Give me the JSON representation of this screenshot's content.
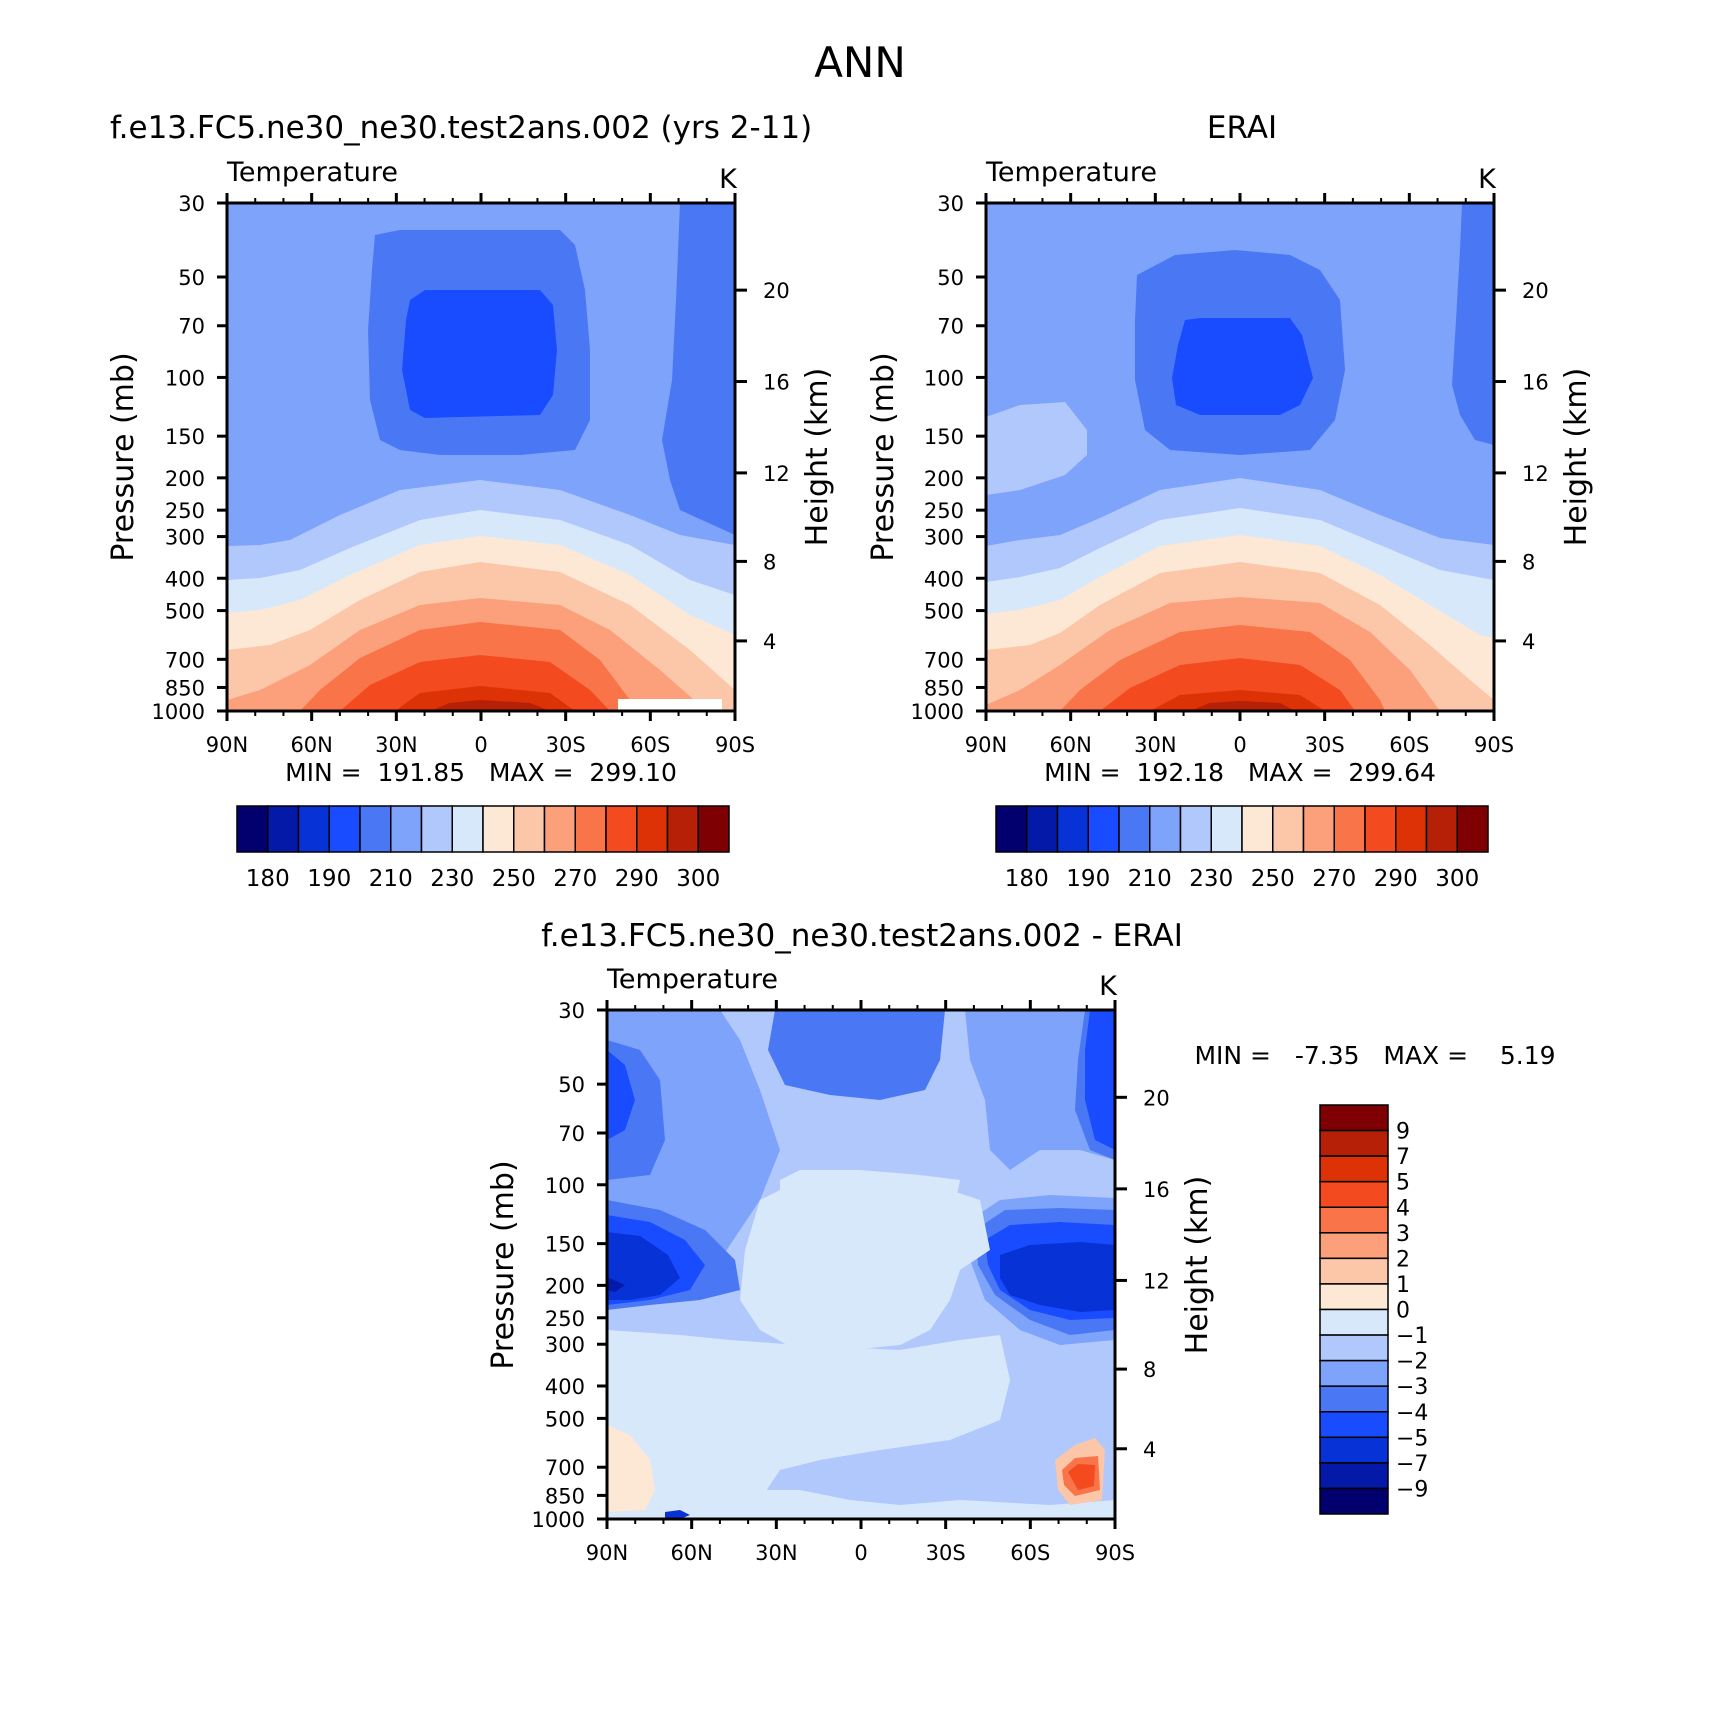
{
  "page": {
    "title": "ANN"
  },
  "colors": {
    "temp_palette": [
      "#02006e",
      "#0519a9",
      "#0632d6",
      "#1a4cff",
      "#4a78f5",
      "#7ea3fb",
      "#b1c8fc",
      "#d8e8fb",
      "#fde8d6",
      "#fcc6a8",
      "#fba07a",
      "#f97448",
      "#f44a1f",
      "#dd3106",
      "#b52006",
      "#7e0002"
    ],
    "diff_palette": [
      "#02006e",
      "#0519a9",
      "#0632d6",
      "#1a4cff",
      "#4a78f5",
      "#7ea3fb",
      "#b1c8fc",
      "#d8e8fb",
      "#fde8d6",
      "#fcc6a8",
      "#fba07a",
      "#f97448",
      "#f44a1f",
      "#dd3106",
      "#b52006",
      "#7e0002"
    ]
  },
  "chart_data": [
    {
      "id": "model",
      "type": "heatmap",
      "title": "f.e13.FC5.ne30_ne30.test2ans.002 (yrs 2-11)",
      "subtitle_left": "Temperature",
      "units": "K",
      "ylabel": "Pressure (mb)",
      "y2label": "Height (km)",
      "x_ticks": [
        "90N",
        "60N",
        "30N",
        "0",
        "30S",
        "60S",
        "90S"
      ],
      "y_ticks": [
        "30",
        "50",
        "70",
        "100",
        "150",
        "200",
        "250",
        "300",
        "400",
        "500",
        "700",
        "850",
        "1000"
      ],
      "y2_ticks": [
        "20",
        "16",
        "12",
        "8",
        "4"
      ],
      "min_label": "MIN =  191.85   MAX =  299.10",
      "colorbar_labels": [
        "180",
        "190",
        "210",
        "230",
        "250",
        "270",
        "290",
        "300"
      ],
      "range": [
        191.85,
        299.1
      ]
    },
    {
      "id": "obs",
      "type": "heatmap",
      "title": "ERAI",
      "subtitle_left": "Temperature",
      "units": "K",
      "ylabel": "Pressure (mb)",
      "y2label": "Height (km)",
      "x_ticks": [
        "90N",
        "60N",
        "30N",
        "0",
        "30S",
        "60S",
        "90S"
      ],
      "y_ticks": [
        "30",
        "50",
        "70",
        "100",
        "150",
        "200",
        "250",
        "300",
        "400",
        "500",
        "700",
        "850",
        "1000"
      ],
      "y2_ticks": [
        "20",
        "16",
        "12",
        "8",
        "4"
      ],
      "min_label": "MIN =  192.18   MAX =  299.64",
      "colorbar_labels": [
        "180",
        "190",
        "210",
        "230",
        "250",
        "270",
        "290",
        "300"
      ],
      "range": [
        192.18,
        299.64
      ]
    },
    {
      "id": "diff",
      "type": "heatmap",
      "title": "f.e13.FC5.ne30_ne30.test2ans.002 - ERAI",
      "subtitle_left": "Temperature",
      "units": "K",
      "ylabel": "Pressure (mb)",
      "y2label": "Height (km)",
      "x_ticks": [
        "90N",
        "60N",
        "30N",
        "0",
        "30S",
        "60S",
        "90S"
      ],
      "y_ticks": [
        "30",
        "50",
        "70",
        "100",
        "150",
        "200",
        "250",
        "300",
        "400",
        "500",
        "700",
        "850",
        "1000"
      ],
      "y2_ticks": [
        "20",
        "16",
        "12",
        "8",
        "4"
      ],
      "min_label": "MIN =   -7.35   MAX =    5.19",
      "colorbar_labels": [
        "9",
        "7",
        "5",
        "4",
        "3",
        "2",
        "1",
        "0",
        "-1",
        "-2",
        "-3",
        "-4",
        "-5",
        "-7",
        "-9"
      ],
      "range": [
        -7.35,
        5.19
      ]
    }
  ]
}
